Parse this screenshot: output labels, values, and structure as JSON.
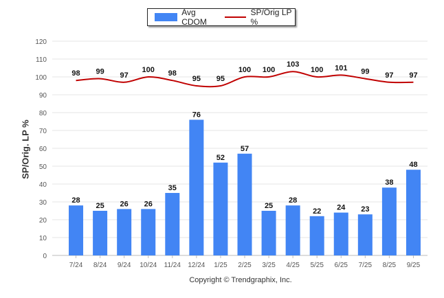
{
  "colors": {
    "bar": "#4285f4",
    "line": "#c00000",
    "grid": "#e6e6e6",
    "axis_text": "#555555"
  },
  "legend": {
    "bar_label": "Avg CDOM",
    "line_label": "SP/Orig LP %"
  },
  "footer": "Copyright © Trendgraphix, Inc.",
  "chart_data": {
    "type": "bar",
    "title": "",
    "xlabel": "",
    "ylabel": "SP/Orig. LP %",
    "ylim": [
      0,
      120
    ],
    "yticks": [
      0,
      10,
      20,
      30,
      40,
      50,
      60,
      70,
      80,
      90,
      100,
      110,
      120
    ],
    "categories": [
      "7/24",
      "8/24",
      "9/24",
      "10/24",
      "11/24",
      "12/24",
      "1/25",
      "2/25",
      "3/25",
      "4/25",
      "5/25",
      "6/25",
      "7/25",
      "8/25",
      "9/25"
    ],
    "series": [
      {
        "name": "Avg CDOM",
        "type": "bar",
        "values": [
          28,
          25,
          26,
          26,
          35,
          76,
          52,
          57,
          25,
          28,
          22,
          24,
          23,
          38,
          48
        ]
      },
      {
        "name": "SP/Orig LP %",
        "type": "line",
        "values": [
          98,
          99,
          97,
          100,
          98,
          95,
          95,
          100,
          100,
          103,
          100,
          101,
          99,
          97,
          97
        ]
      }
    ],
    "legend_position": "top-center",
    "grid": true
  }
}
